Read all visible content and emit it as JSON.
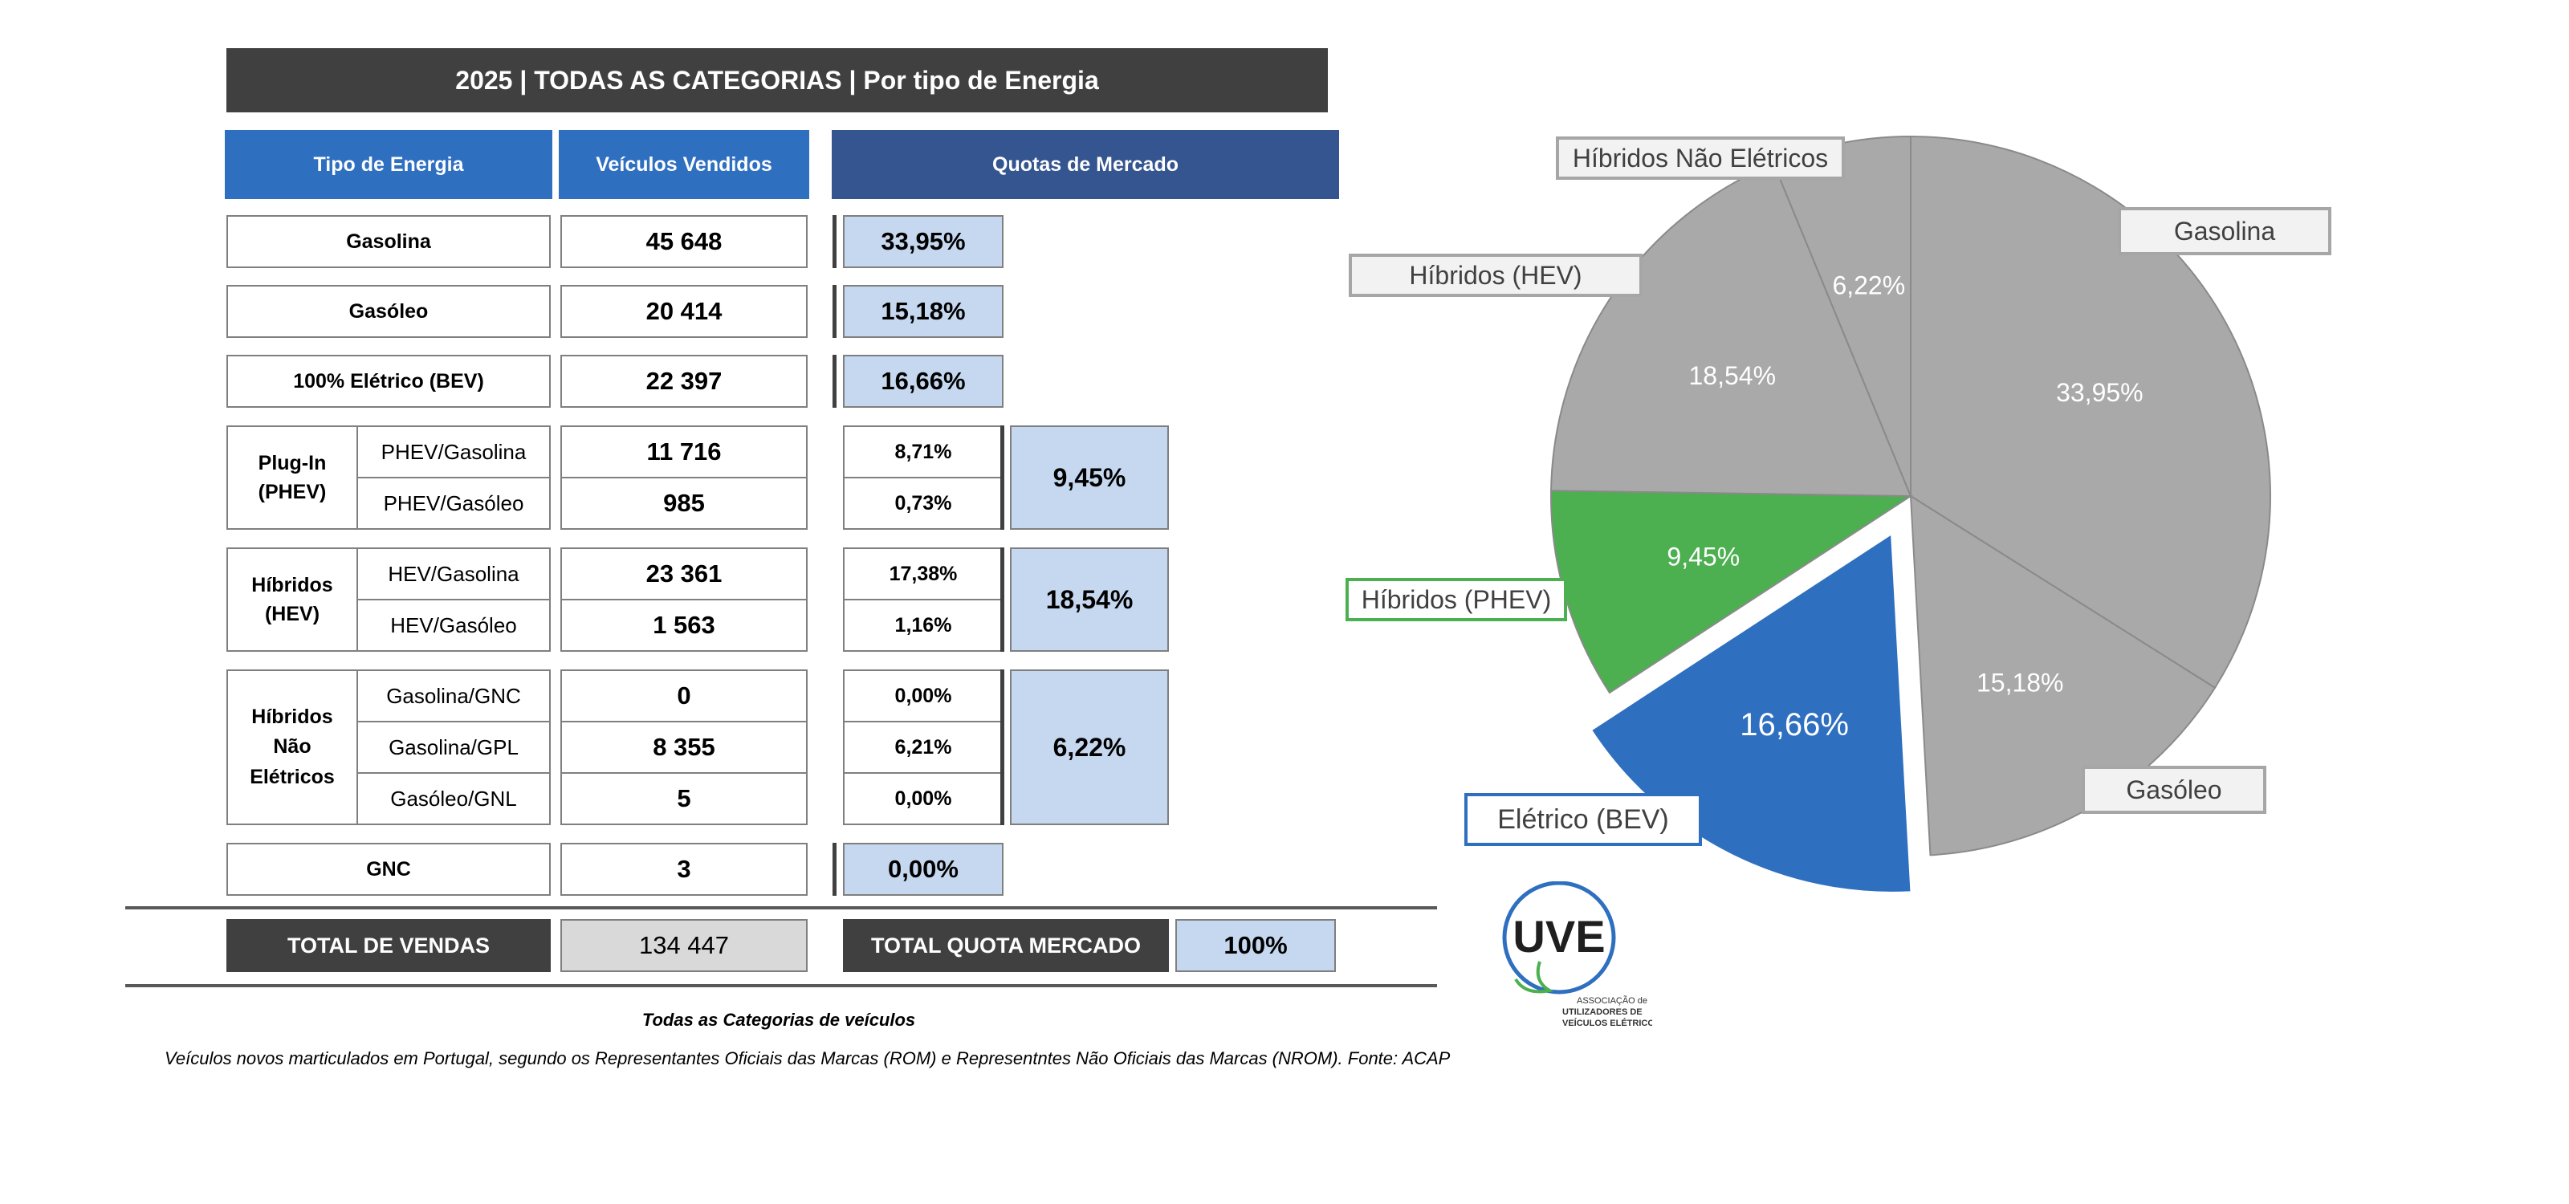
{
  "table": {
    "title": "2025 | TODAS AS CATEGORIAS | Por tipo de Energia",
    "headers": {
      "tipo": "Tipo de Energia",
      "vendidos": "Veículos Vendidos",
      "quotas": "Quotas de Mercado"
    },
    "simple_rows": [
      {
        "label": "Gasolina",
        "value": "45 648",
        "share": "33,95%"
      },
      {
        "label": "Gasóleo",
        "value": "20 414",
        "share": "15,18%"
      },
      {
        "label": "100% Elétrico (BEV)",
        "value": "22 397",
        "share": "16,66%"
      }
    ],
    "groups": [
      {
        "label": "Plug-In (PHEV)",
        "total_share": "9,45%",
        "rows": [
          {
            "label": "PHEV/Gasolina",
            "value": "11 716",
            "share": "8,71%"
          },
          {
            "label": "PHEV/Gasóleo",
            "value": "985",
            "share": "0,73%"
          }
        ]
      },
      {
        "label": "Híbridos (HEV)",
        "total_share": "18,54%",
        "rows": [
          {
            "label": "HEV/Gasolina",
            "value": "23 361",
            "share": "17,38%"
          },
          {
            "label": "HEV/Gasóleo",
            "value": "1 563",
            "share": "1,16%"
          }
        ]
      },
      {
        "label": "Híbridos Não Elétricos",
        "total_share": "6,22%",
        "rows": [
          {
            "label": "Gasolina/GNC",
            "value": "0",
            "share": "0,00%"
          },
          {
            "label": "Gasolina/GPL",
            "value": "8 355",
            "share": "6,21%"
          },
          {
            "label": "Gasóleo/GNL",
            "value": "5",
            "share": "0,00%"
          }
        ]
      }
    ],
    "gnc_row": {
      "label": "GNC",
      "value": "3",
      "share": "0,00%"
    },
    "totals": {
      "vendas_label": "TOTAL DE VENDAS",
      "vendas_value": "134 447",
      "quota_label": "TOTAL QUOTA MERCADO",
      "quota_value": "100%"
    }
  },
  "footnotes": {
    "line1": "Todas as Categorias de veículos",
    "line2": "Veículos novos marticulados em Portugal, segundo os Representantes Oficiais das Marcas (ROM) e Representntes Não Oficiais das Marcas (NROM). Fonte: ACAP"
  },
  "logo": {
    "text": "UVE",
    "subtitle": [
      "ASSOCIAÇÃO de",
      "UTILIZADORES DE",
      "VEÍCULOS ELÉTRICOS"
    ]
  },
  "chart_data": {
    "type": "pie",
    "slices": [
      {
        "name": "Gasolina",
        "value": 33.95,
        "label": "33,95%",
        "color": "#a9a9a9",
        "exploded": false
      },
      {
        "name": "Gasóleo",
        "value": 15.18,
        "label": "15,18%",
        "color": "#a9a9a9",
        "exploded": false
      },
      {
        "name": "Elétrico (BEV)",
        "value": 16.66,
        "label": "16,66%",
        "color": "#2e6fc0",
        "exploded": true
      },
      {
        "name": "Híbridos (PHEV)",
        "value": 9.45,
        "label": "9,45%",
        "color": "#4caf50",
        "exploded": false
      },
      {
        "name": "Híbridos (HEV)",
        "value": 18.54,
        "label": "18,54%",
        "color": "#a9a9a9",
        "exploded": false
      },
      {
        "name": "Híbridos Não Elétricos",
        "value": 6.22,
        "label": "6,22%",
        "color": "#a9a9a9",
        "exploded": false
      }
    ]
  }
}
